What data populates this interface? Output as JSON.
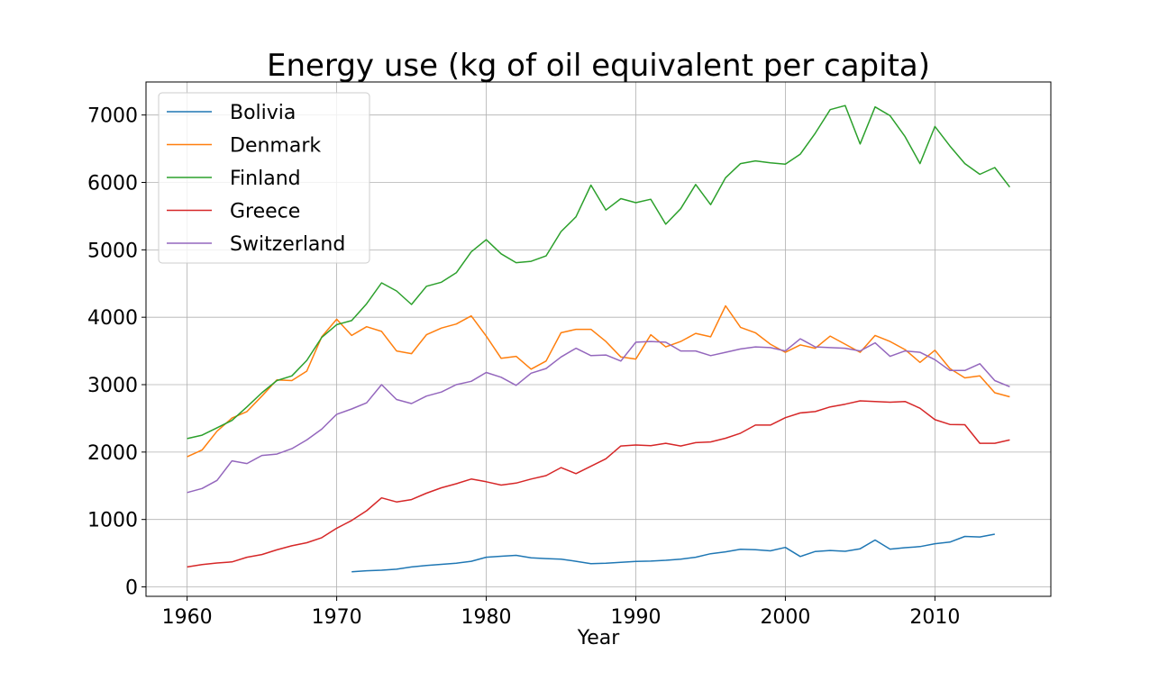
{
  "chart_data": {
    "type": "line",
    "title": "Energy use (kg of oil equivalent per capita)",
    "xlabel": "Year",
    "ylabel": "",
    "xlim": [
      1956.75,
      1918.25
    ],
    "ylim": [
      -140,
      7490
    ],
    "x_ticks": [
      1960,
      1970,
      1980,
      1990,
      2000,
      2010
    ],
    "y_ticks": [
      0,
      1000,
      2000,
      3000,
      4000,
      5000,
      6000,
      7000
    ],
    "grid": true,
    "legend_position": "top-left",
    "series": [
      {
        "name": "Bolivia",
        "color": "#1f77b4",
        "points": [
          [
            1971,
            225
          ],
          [
            1972,
            240
          ],
          [
            1973,
            248
          ],
          [
            1974,
            262
          ],
          [
            1975,
            295
          ],
          [
            1976,
            318
          ],
          [
            1977,
            335
          ],
          [
            1978,
            352
          ],
          [
            1979,
            380
          ],
          [
            1980,
            440
          ],
          [
            1981,
            455
          ],
          [
            1982,
            468
          ],
          [
            1983,
            432
          ],
          [
            1984,
            420
          ],
          [
            1985,
            410
          ],
          [
            1986,
            380
          ],
          [
            1987,
            345
          ],
          [
            1988,
            352
          ],
          [
            1989,
            365
          ],
          [
            1990,
            378
          ],
          [
            1991,
            382
          ],
          [
            1992,
            395
          ],
          [
            1993,
            412
          ],
          [
            1994,
            440
          ],
          [
            1995,
            492
          ],
          [
            1996,
            520
          ],
          [
            1997,
            558
          ],
          [
            1998,
            552
          ],
          [
            1999,
            535
          ],
          [
            2000,
            585
          ],
          [
            2001,
            450
          ],
          [
            2002,
            525
          ],
          [
            2003,
            540
          ],
          [
            2004,
            528
          ],
          [
            2005,
            565
          ],
          [
            2006,
            695
          ],
          [
            2007,
            560
          ],
          [
            2008,
            582
          ],
          [
            2009,
            598
          ],
          [
            2010,
            640
          ],
          [
            2011,
            665
          ],
          [
            2012,
            748
          ],
          [
            2013,
            740
          ],
          [
            2014,
            782
          ]
        ]
      },
      {
        "name": "Denmark",
        "color": "#ff7f0e",
        "points": [
          [
            1960,
            1930
          ],
          [
            1961,
            2030
          ],
          [
            1962,
            2310
          ],
          [
            1963,
            2505
          ],
          [
            1964,
            2600
          ],
          [
            1965,
            2830
          ],
          [
            1966,
            3070
          ],
          [
            1967,
            3060
          ],
          [
            1968,
            3200
          ],
          [
            1969,
            3710
          ],
          [
            1970,
            3970
          ],
          [
            1971,
            3730
          ],
          [
            1972,
            3860
          ],
          [
            1973,
            3790
          ],
          [
            1974,
            3500
          ],
          [
            1975,
            3460
          ],
          [
            1976,
            3740
          ],
          [
            1977,
            3840
          ],
          [
            1978,
            3900
          ],
          [
            1979,
            4020
          ],
          [
            1980,
            3720
          ],
          [
            1981,
            3390
          ],
          [
            1982,
            3420
          ],
          [
            1983,
            3230
          ],
          [
            1984,
            3350
          ],
          [
            1985,
            3770
          ],
          [
            1986,
            3820
          ],
          [
            1987,
            3820
          ],
          [
            1988,
            3640
          ],
          [
            1989,
            3410
          ],
          [
            1990,
            3380
          ],
          [
            1991,
            3740
          ],
          [
            1992,
            3560
          ],
          [
            1993,
            3640
          ],
          [
            1994,
            3760
          ],
          [
            1995,
            3710
          ],
          [
            1996,
            4170
          ],
          [
            1997,
            3850
          ],
          [
            1998,
            3770
          ],
          [
            1999,
            3600
          ],
          [
            2000,
            3480
          ],
          [
            2001,
            3590
          ],
          [
            2002,
            3540
          ],
          [
            2003,
            3720
          ],
          [
            2004,
            3600
          ],
          [
            2005,
            3480
          ],
          [
            2006,
            3730
          ],
          [
            2007,
            3640
          ],
          [
            2008,
            3520
          ],
          [
            2009,
            3330
          ],
          [
            2010,
            3510
          ],
          [
            2011,
            3240
          ],
          [
            2012,
            3100
          ],
          [
            2013,
            3130
          ],
          [
            2014,
            2880
          ],
          [
            2015,
            2820
          ]
        ]
      },
      {
        "name": "Finland",
        "color": "#2ca02c",
        "points": [
          [
            1960,
            2200
          ],
          [
            1961,
            2250
          ],
          [
            1962,
            2360
          ],
          [
            1963,
            2470
          ],
          [
            1964,
            2670
          ],
          [
            1965,
            2880
          ],
          [
            1966,
            3060
          ],
          [
            1967,
            3130
          ],
          [
            1968,
            3360
          ],
          [
            1969,
            3700
          ],
          [
            1970,
            3890
          ],
          [
            1971,
            3950
          ],
          [
            1972,
            4200
          ],
          [
            1973,
            4510
          ],
          [
            1974,
            4390
          ],
          [
            1975,
            4190
          ],
          [
            1976,
            4460
          ],
          [
            1977,
            4520
          ],
          [
            1978,
            4660
          ],
          [
            1979,
            4970
          ],
          [
            1980,
            5150
          ],
          [
            1981,
            4940
          ],
          [
            1982,
            4810
          ],
          [
            1983,
            4830
          ],
          [
            1984,
            4910
          ],
          [
            1985,
            5270
          ],
          [
            1986,
            5490
          ],
          [
            1987,
            5960
          ],
          [
            1988,
            5590
          ],
          [
            1989,
            5760
          ],
          [
            1990,
            5700
          ],
          [
            1991,
            5750
          ],
          [
            1992,
            5380
          ],
          [
            1993,
            5610
          ],
          [
            1994,
            5970
          ],
          [
            1995,
            5670
          ],
          [
            1996,
            6070
          ],
          [
            1997,
            6280
          ],
          [
            1998,
            6320
          ],
          [
            1999,
            6290
          ],
          [
            2000,
            6270
          ],
          [
            2001,
            6420
          ],
          [
            2002,
            6730
          ],
          [
            2003,
            7080
          ],
          [
            2004,
            7140
          ],
          [
            2005,
            6570
          ],
          [
            2006,
            7120
          ],
          [
            2007,
            6990
          ],
          [
            2008,
            6680
          ],
          [
            2009,
            6280
          ],
          [
            2010,
            6830
          ],
          [
            2011,
            6540
          ],
          [
            2012,
            6280
          ],
          [
            2013,
            6120
          ],
          [
            2014,
            6220
          ],
          [
            2015,
            5930
          ]
        ]
      },
      {
        "name": "Greece",
        "color": "#d62728",
        "points": [
          [
            1960,
            295
          ],
          [
            1961,
            330
          ],
          [
            1962,
            355
          ],
          [
            1963,
            370
          ],
          [
            1964,
            440
          ],
          [
            1965,
            480
          ],
          [
            1966,
            550
          ],
          [
            1967,
            610
          ],
          [
            1968,
            655
          ],
          [
            1969,
            730
          ],
          [
            1970,
            870
          ],
          [
            1971,
            985
          ],
          [
            1972,
            1130
          ],
          [
            1973,
            1320
          ],
          [
            1974,
            1260
          ],
          [
            1975,
            1295
          ],
          [
            1976,
            1390
          ],
          [
            1977,
            1470
          ],
          [
            1978,
            1530
          ],
          [
            1979,
            1600
          ],
          [
            1980,
            1560
          ],
          [
            1981,
            1510
          ],
          [
            1982,
            1540
          ],
          [
            1983,
            1600
          ],
          [
            1984,
            1650
          ],
          [
            1985,
            1770
          ],
          [
            1986,
            1680
          ],
          [
            1987,
            1790
          ],
          [
            1988,
            1900
          ],
          [
            1989,
            2090
          ],
          [
            1990,
            2105
          ],
          [
            1991,
            2095
          ],
          [
            1992,
            2130
          ],
          [
            1993,
            2090
          ],
          [
            1994,
            2140
          ],
          [
            1995,
            2150
          ],
          [
            1996,
            2205
          ],
          [
            1997,
            2280
          ],
          [
            1998,
            2400
          ],
          [
            1999,
            2400
          ],
          [
            2000,
            2510
          ],
          [
            2001,
            2580
          ],
          [
            2002,
            2600
          ],
          [
            2003,
            2670
          ],
          [
            2004,
            2710
          ],
          [
            2005,
            2760
          ],
          [
            2006,
            2750
          ],
          [
            2007,
            2740
          ],
          [
            2008,
            2750
          ],
          [
            2009,
            2650
          ],
          [
            2010,
            2480
          ],
          [
            2011,
            2410
          ],
          [
            2012,
            2405
          ],
          [
            2013,
            2130
          ],
          [
            2014,
            2130
          ],
          [
            2015,
            2180
          ]
        ]
      },
      {
        "name": "Switzerland",
        "color": "#9467bd",
        "points": [
          [
            1960,
            1400
          ],
          [
            1961,
            1460
          ],
          [
            1962,
            1580
          ],
          [
            1963,
            1870
          ],
          [
            1964,
            1830
          ],
          [
            1965,
            1950
          ],
          [
            1966,
            1970
          ],
          [
            1967,
            2050
          ],
          [
            1968,
            2180
          ],
          [
            1969,
            2340
          ],
          [
            1970,
            2560
          ],
          [
            1971,
            2640
          ],
          [
            1972,
            2730
          ],
          [
            1973,
            3000
          ],
          [
            1974,
            2780
          ],
          [
            1975,
            2720
          ],
          [
            1976,
            2830
          ],
          [
            1977,
            2890
          ],
          [
            1978,
            3000
          ],
          [
            1979,
            3050
          ],
          [
            1980,
            3180
          ],
          [
            1981,
            3110
          ],
          [
            1982,
            2990
          ],
          [
            1983,
            3170
          ],
          [
            1984,
            3240
          ],
          [
            1985,
            3410
          ],
          [
            1986,
            3540
          ],
          [
            1987,
            3430
          ],
          [
            1988,
            3440
          ],
          [
            1989,
            3350
          ],
          [
            1990,
            3630
          ],
          [
            1991,
            3640
          ],
          [
            1992,
            3630
          ],
          [
            1993,
            3500
          ],
          [
            1994,
            3500
          ],
          [
            1995,
            3430
          ],
          [
            1996,
            3480
          ],
          [
            1997,
            3530
          ],
          [
            1998,
            3560
          ],
          [
            1999,
            3550
          ],
          [
            2000,
            3500
          ],
          [
            2001,
            3680
          ],
          [
            2002,
            3560
          ],
          [
            2003,
            3550
          ],
          [
            2004,
            3540
          ],
          [
            2005,
            3500
          ],
          [
            2006,
            3620
          ],
          [
            2007,
            3420
          ],
          [
            2008,
            3500
          ],
          [
            2009,
            3480
          ],
          [
            2010,
            3370
          ],
          [
            2011,
            3210
          ],
          [
            2012,
            3210
          ],
          [
            2013,
            3310
          ],
          [
            2014,
            3060
          ],
          [
            2015,
            2970
          ]
        ]
      }
    ]
  }
}
